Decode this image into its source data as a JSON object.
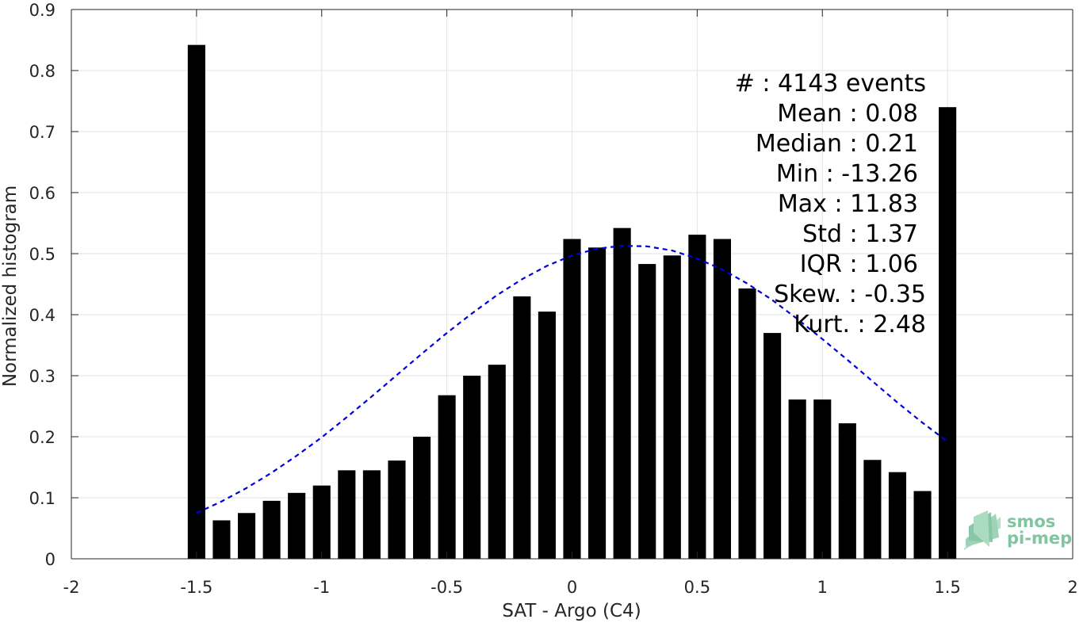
{
  "chart_data": {
    "type": "bar",
    "xlabel": "SAT - Argo (C4)",
    "ylabel": "Normalized histogram",
    "xlim": [
      -2,
      2
    ],
    "ylim": [
      0,
      0.9
    ],
    "x_ticks": [
      -2,
      -1.5,
      -1,
      -0.5,
      0,
      0.5,
      1,
      1.5,
      2
    ],
    "x_tick_labels": [
      "-2",
      "-1.5",
      "-1",
      "-0.5",
      "0",
      "0.5",
      "1",
      "1.5",
      "2"
    ],
    "y_ticks": [
      0,
      0.1,
      0.2,
      0.3,
      0.4,
      0.5,
      0.6,
      0.7,
      0.8,
      0.9
    ],
    "y_tick_labels": [
      "0",
      "0.1",
      "0.2",
      "0.3",
      "0.4",
      "0.5",
      "0.6",
      "0.7",
      "0.8",
      "0.9"
    ],
    "grid": true,
    "bar_color": "#000000",
    "bar_width": 0.07,
    "series": [
      {
        "type": "bar",
        "x": [
          -1.5,
          -1.4,
          -1.3,
          -1.2,
          -1.1,
          -1.0,
          -0.9,
          -0.8,
          -0.7,
          -0.6,
          -0.5,
          -0.4,
          -0.3,
          -0.2,
          -0.1,
          0.0,
          0.1,
          0.2,
          0.3,
          0.4,
          0.5,
          0.6,
          0.7,
          0.8,
          0.9,
          1.0,
          1.1,
          1.2,
          1.3,
          1.4,
          1.5
        ],
        "values": [
          0.842,
          0.063,
          0.075,
          0.095,
          0.108,
          0.12,
          0.145,
          0.145,
          0.161,
          0.2,
          0.268,
          0.3,
          0.318,
          0.43,
          0.405,
          0.524,
          0.51,
          0.542,
          0.483,
          0.497,
          0.531,
          0.524,
          0.443,
          0.37,
          0.261,
          0.261,
          0.222,
          0.162,
          0.142,
          0.111,
          0.74
        ]
      },
      {
        "type": "line",
        "style": "dashed",
        "color": "#0000dd",
        "x": [
          -1.5,
          -1.4,
          -1.3,
          -1.2,
          -1.1,
          -1.0,
          -0.9,
          -0.8,
          -0.7,
          -0.6,
          -0.5,
          -0.4,
          -0.3,
          -0.2,
          -0.1,
          0.0,
          0.1,
          0.2,
          0.3,
          0.4,
          0.5,
          0.6,
          0.7,
          0.8,
          0.9,
          1.0,
          1.1,
          1.2,
          1.3,
          1.4,
          1.5
        ],
        "values": [
          0.075,
          0.094,
          0.116,
          0.141,
          0.169,
          0.199,
          0.232,
          0.266,
          0.301,
          0.336,
          0.37,
          0.402,
          0.432,
          0.458,
          0.48,
          0.497,
          0.508,
          0.513,
          0.512,
          0.505,
          0.492,
          0.474,
          0.451,
          0.424,
          0.393,
          0.36,
          0.326,
          0.291,
          0.256,
          0.223,
          0.192
        ]
      }
    ],
    "annotations": [
      "#  : 4143 events",
      "Mean : 0.08",
      "Median : 0.21",
      "Min : -13.26",
      "Max : 11.83",
      "Std : 1.37",
      "IQR : 1.06",
      "Skew. : -0.35",
      "Kurt. : 2.48"
    ]
  },
  "logo": {
    "line1": "smos",
    "line2": "pi-mep",
    "color": "#7fc59f"
  }
}
